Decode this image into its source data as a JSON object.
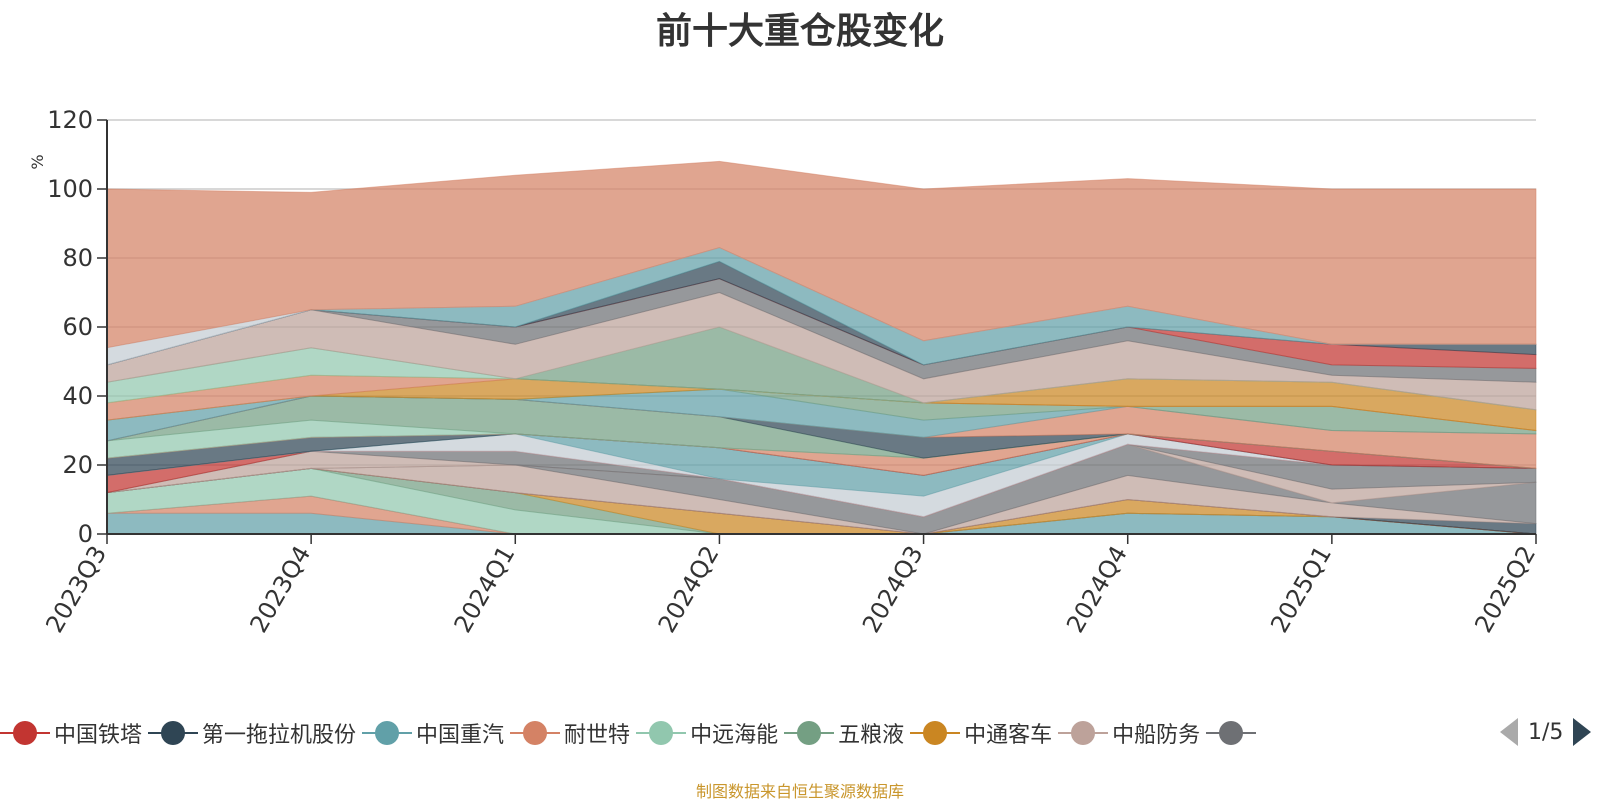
{
  "title": "前十大重仓股变化",
  "source": "制图数据来自恒生聚源数据库",
  "pager": {
    "text": "1/5"
  },
  "chart_data": {
    "type": "area",
    "stacked": true,
    "ylabel": "%",
    "ylim": [
      0,
      120
    ],
    "yticks": [
      0,
      20,
      40,
      60,
      80,
      100,
      120
    ],
    "grid": true,
    "categories": [
      "2023Q3",
      "2023Q4",
      "2024Q1",
      "2024Q2",
      "2024Q3",
      "2024Q4",
      "2025Q1",
      "2025Q2"
    ],
    "legend_visible": [
      {
        "name": "中国铁塔",
        "color": "#c23531"
      },
      {
        "name": "第一拖拉机股份",
        "color": "#2f4554"
      },
      {
        "name": "中国重汽",
        "color": "#61a0a8"
      },
      {
        "name": "耐世特",
        "color": "#d48265"
      },
      {
        "name": "中远海能",
        "color": "#91c7ae"
      },
      {
        "name": "五粮液",
        "color": "#749f83"
      },
      {
        "name": "中通客车",
        "color": "#ca8622"
      },
      {
        "name": "中船防务",
        "color": "#bda29a"
      },
      {
        "name": "",
        "color": "#6e7074"
      }
    ],
    "layers": [
      {
        "color": "#61a0a8",
        "values": [
          6,
          6,
          0,
          0,
          0,
          6,
          5,
          0
        ]
      },
      {
        "color": "#d48265",
        "values": [
          0,
          5,
          0,
          0,
          0,
          0,
          0,
          0
        ]
      },
      {
        "color": "#c23531",
        "values": [
          0,
          0,
          0,
          0,
          0,
          0,
          0,
          0
        ]
      },
      {
        "color": "#91c7ae",
        "values": [
          6,
          8,
          7,
          0,
          0,
          0,
          0,
          0
        ]
      },
      {
        "color": "#749f83",
        "values": [
          0,
          0,
          5,
          0,
          0,
          0,
          0,
          0
        ]
      },
      {
        "color": "#ca8622",
        "values": [
          0,
          0,
          0,
          6,
          0,
          4,
          0,
          0
        ]
      },
      {
        "color": "#c23531",
        "values": [
          0,
          0,
          0,
          0,
          0,
          0,
          0,
          0
        ]
      },
      {
        "color": "#2f4554",
        "values": [
          0,
          0,
          0,
          0,
          0,
          0,
          0,
          3
        ]
      },
      {
        "color": "#bda29a",
        "values": [
          0,
          0,
          8,
          4,
          0,
          7,
          4,
          0
        ]
      },
      {
        "color": "#6e7074",
        "values": [
          0,
          0,
          0,
          6,
          5,
          9,
          0,
          12
        ]
      },
      {
        "color": "#bda29a",
        "values": [
          0,
          5,
          0,
          0,
          0,
          0,
          4,
          0
        ]
      },
      {
        "color": "#6e7074",
        "values": [
          0,
          0,
          4,
          0,
          0,
          0,
          7,
          4
        ]
      },
      {
        "color": "#c23531",
        "values": [
          5,
          0,
          0,
          0,
          0,
          0,
          0,
          0
        ]
      },
      {
        "color": "#c4ccd3",
        "values": [
          0,
          0,
          5,
          0,
          6,
          3,
          0,
          0
        ]
      },
      {
        "color": "#61a0a8",
        "values": [
          0,
          0,
          0,
          9,
          6,
          0,
          0,
          0
        ]
      },
      {
        "color": "#2f4554",
        "values": [
          5,
          4,
          0,
          0,
          0,
          0,
          0,
          0
        ]
      },
      {
        "color": "#c23531",
        "values": [
          0,
          0,
          0,
          0,
          0,
          0,
          4,
          0
        ]
      },
      {
        "color": "#d48265",
        "values": [
          0,
          0,
          0,
          0,
          5,
          0,
          0,
          0
        ]
      },
      {
        "color": "#91c7ae",
        "values": [
          5,
          5,
          0,
          0,
          0,
          0,
          0,
          0
        ]
      },
      {
        "color": "#749f83",
        "values": [
          0,
          7,
          10,
          9,
          0,
          0,
          0,
          0
        ]
      },
      {
        "color": "#2f4554",
        "values": [
          0,
          0,
          0,
          0,
          6,
          0,
          0,
          0
        ]
      },
      {
        "color": "#d48265",
        "values": [
          0,
          0,
          0,
          0,
          0,
          8,
          6,
          10
        ]
      },
      {
        "color": "#61a0a8",
        "values": [
          6,
          0,
          0,
          8,
          5,
          0,
          0,
          0
        ]
      },
      {
        "color": "#749f83",
        "values": [
          0,
          0,
          0,
          0,
          5,
          0,
          7,
          1
        ]
      },
      {
        "color": "#ca8622",
        "values": [
          0,
          0,
          6,
          0,
          0,
          0,
          0,
          0
        ]
      },
      {
        "color": "#d48265",
        "values": [
          5,
          6,
          0,
          0,
          0,
          0,
          0,
          0
        ]
      },
      {
        "color": "#ca8622",
        "values": [
          0,
          0,
          0,
          0,
          0,
          8,
          7,
          6
        ]
      },
      {
        "color": "#91c7ae",
        "values": [
          6,
          8,
          0,
          0,
          0,
          0,
          0,
          0
        ]
      },
      {
        "color": "#749f83",
        "values": [
          0,
          0,
          0,
          18,
          0,
          0,
          0,
          0
        ]
      },
      {
        "color": "#bda29a",
        "values": [
          5,
          11,
          10,
          10,
          7,
          11,
          2,
          8
        ]
      },
      {
        "color": "#6e7074",
        "values": [
          0,
          0,
          5,
          4,
          4,
          4,
          3,
          4
        ]
      },
      {
        "color": "#c23531",
        "values": [
          0,
          0,
          0,
          0,
          0,
          0,
          6,
          4
        ]
      },
      {
        "color": "#2f4554",
        "values": [
          0,
          0,
          0,
          5,
          0,
          0,
          0,
          3
        ]
      },
      {
        "color": "#61a0a8",
        "values": [
          0,
          0,
          6,
          4,
          7,
          6,
          0,
          0
        ]
      },
      {
        "color": "#c4ccd3",
        "values": [
          5,
          0,
          0,
          0,
          0,
          0,
          0,
          0
        ]
      },
      {
        "color": "#d48265",
        "values": [
          46,
          34,
          38,
          25,
          44,
          37,
          45,
          45
        ]
      }
    ]
  }
}
